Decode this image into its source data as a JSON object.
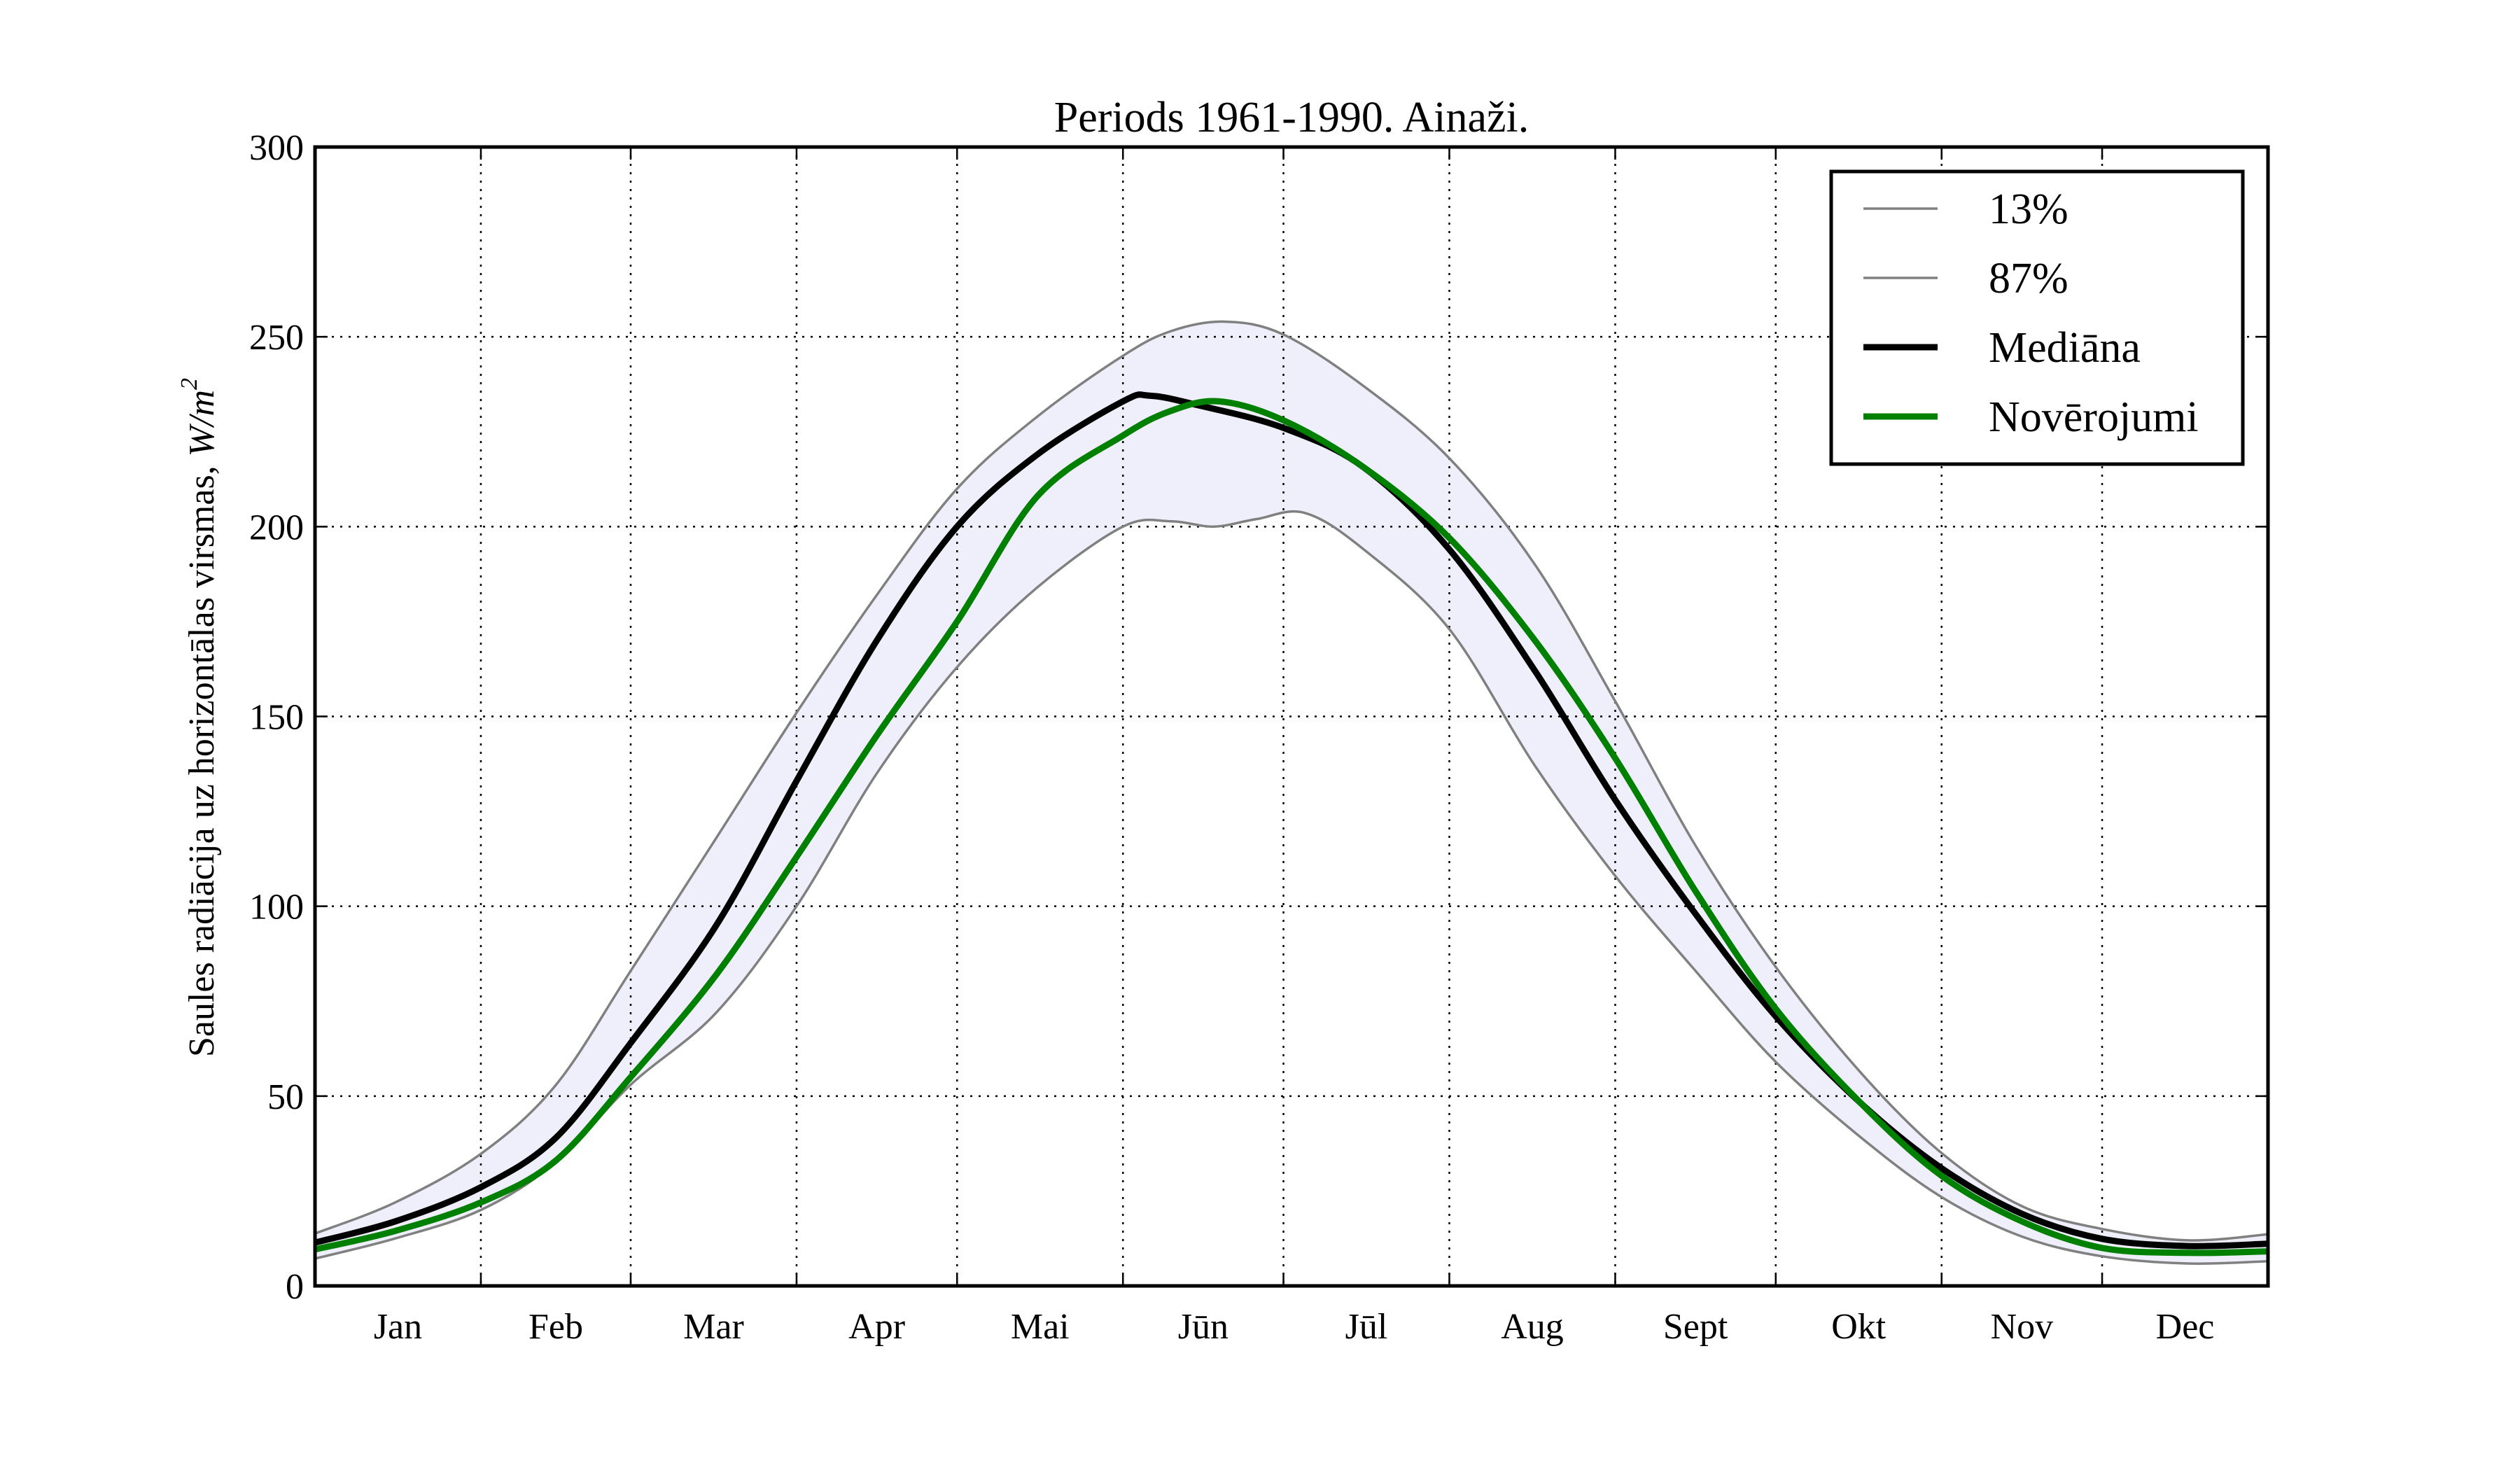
{
  "chart_data": {
    "type": "line",
    "title": "Periods 1961-1990. Ainaži.",
    "xlabel": "",
    "ylabel": "Saules radiācija uz horizontālas virsmas, W/m²",
    "ylabel_prefix": "Saules radiācija uz horizontālas virsmas, ",
    "ylabel_unit": "W/m",
    "ylabel_exp": "2",
    "x_unit": "day of year",
    "xlim": [
      0,
      365
    ],
    "ylim": [
      0,
      300
    ],
    "yticks": [
      0,
      50,
      100,
      150,
      200,
      250,
      300
    ],
    "ytick_labels": [
      "0",
      "50",
      "100",
      "150",
      "200",
      "250",
      "300"
    ],
    "month_boundaries": [
      31,
      59,
      90,
      120,
      151,
      181,
      212,
      243,
      273,
      304,
      334
    ],
    "month_labels": [
      "Jan",
      "Feb",
      "Mar",
      "Apr",
      "Mai",
      "Jūn",
      "Jūl",
      "Aug",
      "Sept",
      "Okt",
      "Nov",
      "Dec"
    ],
    "grid": true,
    "legend_position": "top-right",
    "band_fill_color": "#efeffc",
    "series": [
      {
        "name": "13%",
        "color": "#808080",
        "style": "thin",
        "points": [
          [
            0,
            7.2
          ],
          [
            15,
            12.5
          ],
          [
            31,
            20
          ],
          [
            45,
            32.6
          ],
          [
            59,
            53
          ],
          [
            75,
            72
          ],
          [
            90,
            100
          ],
          [
            105,
            135
          ],
          [
            120,
            163
          ],
          [
            135,
            184
          ],
          [
            151,
            200
          ],
          [
            160,
            201.4
          ],
          [
            168,
            200
          ],
          [
            176,
            202
          ],
          [
            185,
            203.6
          ],
          [
            196,
            194
          ],
          [
            212,
            173
          ],
          [
            228,
            137
          ],
          [
            243,
            108
          ],
          [
            258,
            83
          ],
          [
            273,
            59
          ],
          [
            289,
            39
          ],
          [
            304,
            23.4
          ],
          [
            319,
            13
          ],
          [
            334,
            7.8
          ],
          [
            350,
            5.9
          ],
          [
            365,
            6.5
          ]
        ]
      },
      {
        "name": "87%",
        "color": "#808080",
        "style": "thin",
        "points": [
          [
            0,
            13.8
          ],
          [
            15,
            22
          ],
          [
            31,
            34.8
          ],
          [
            45,
            52.9
          ],
          [
            59,
            83
          ],
          [
            75,
            118
          ],
          [
            90,
            151
          ],
          [
            105,
            182
          ],
          [
            120,
            210
          ],
          [
            135,
            229
          ],
          [
            151,
            245
          ],
          [
            160,
            251.5
          ],
          [
            170,
            254
          ],
          [
            181,
            250.6
          ],
          [
            196,
            237
          ],
          [
            212,
            218
          ],
          [
            228,
            190
          ],
          [
            243,
            154
          ],
          [
            258,
            116
          ],
          [
            273,
            84
          ],
          [
            289,
            56
          ],
          [
            304,
            35
          ],
          [
            319,
            21
          ],
          [
            334,
            15
          ],
          [
            350,
            12
          ],
          [
            365,
            13.6
          ]
        ]
      },
      {
        "name": "Mediāna",
        "color": "#000000",
        "style": "thick",
        "points": [
          [
            0,
            11.4
          ],
          [
            15,
            17
          ],
          [
            31,
            26
          ],
          [
            45,
            39
          ],
          [
            59,
            64
          ],
          [
            75,
            95
          ],
          [
            90,
            133
          ],
          [
            105,
            170
          ],
          [
            120,
            200
          ],
          [
            135,
            219
          ],
          [
            151,
            233
          ],
          [
            156,
            234.5
          ],
          [
            165,
            232
          ],
          [
            181,
            226
          ],
          [
            196,
            215.6
          ],
          [
            212,
            194
          ],
          [
            228,
            162
          ],
          [
            243,
            128
          ],
          [
            258,
            98
          ],
          [
            273,
            71
          ],
          [
            289,
            48
          ],
          [
            304,
            31
          ],
          [
            319,
            19
          ],
          [
            334,
            12.4
          ],
          [
            350,
            10.5
          ],
          [
            365,
            11.1
          ]
        ]
      },
      {
        "name": "Novērojumi",
        "color": "#008000",
        "style": "thick",
        "points": [
          [
            0,
            9.6
          ],
          [
            15,
            14.5
          ],
          [
            31,
            22
          ],
          [
            45,
            33
          ],
          [
            59,
            55
          ],
          [
            75,
            82
          ],
          [
            90,
            113
          ],
          [
            105,
            145
          ],
          [
            120,
            175
          ],
          [
            135,
            208
          ],
          [
            151,
            224
          ],
          [
            160,
            230.5
          ],
          [
            169,
            233
          ],
          [
            181,
            228
          ],
          [
            196,
            215.6
          ],
          [
            212,
            197
          ],
          [
            228,
            170
          ],
          [
            243,
            139
          ],
          [
            258,
            104
          ],
          [
            273,
            73
          ],
          [
            289,
            48
          ],
          [
            304,
            29
          ],
          [
            319,
            17
          ],
          [
            334,
            10
          ],
          [
            350,
            8.7
          ],
          [
            365,
            9.1
          ]
        ]
      }
    ]
  }
}
